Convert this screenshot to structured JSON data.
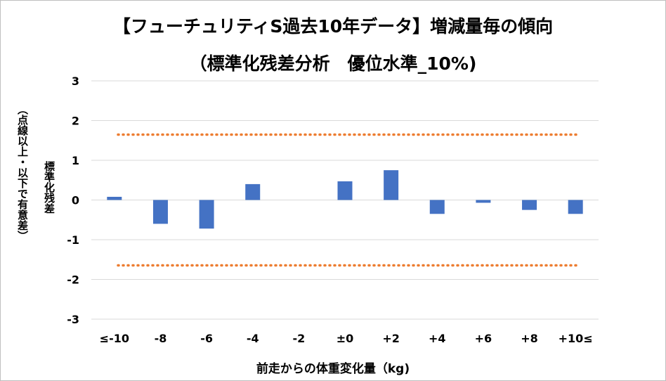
{
  "chart_data": {
    "type": "bar",
    "title": "【フューチュリティS過去10年データ】増減量毎の傾向",
    "subtitle": "（標準化残差分析　優位水準_10%)",
    "ylabel": "標準化残差",
    "ylabel_note": "（点線以上・以下で有意差）",
    "xlabel": "前走からの体重変化量（kg)",
    "categories": [
      "≤-10",
      "-8",
      "-6",
      "-4",
      "-2",
      "±0",
      "+2",
      "+4",
      "+6",
      "+8",
      "+10≤"
    ],
    "values": [
      0.08,
      -0.6,
      -0.72,
      0.4,
      0.0,
      0.47,
      0.75,
      -0.35,
      -0.07,
      -0.25,
      -0.35
    ],
    "ylim": [
      -3,
      3
    ],
    "yticks": [
      "3",
      "2",
      "1",
      "0",
      "-1",
      "-2",
      "-3"
    ],
    "threshold": 1.645,
    "grid": true,
    "bar_color": "#4472C4",
    "threshold_color": "#ED7D31"
  }
}
